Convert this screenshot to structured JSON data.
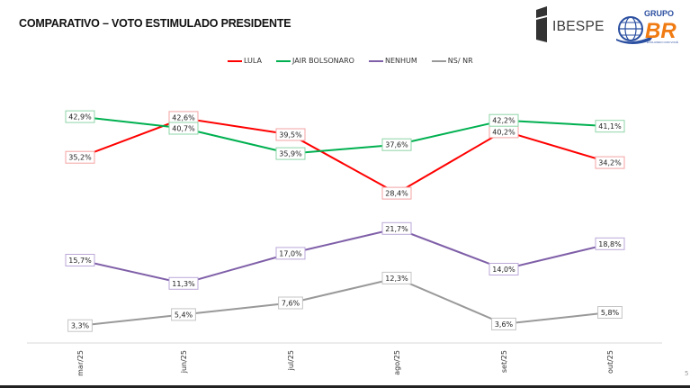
{
  "header": {
    "title": "COMPARATIVO – VOTO ESTIMULADO PRESIDENTE",
    "logos": [
      {
        "name": "IBESPE",
        "text": "IBESPE"
      },
      {
        "name": "Grupo BR",
        "text_top": "GRUPO",
        "text_main": "BR",
        "tagline": "EVOLUINDO COM VOCÊ"
      }
    ]
  },
  "page_number": "5",
  "colors": {
    "lula": "#ff0000",
    "bolsonaro": "#00b050",
    "nenhum": "#7f5fa8",
    "nsnr": "#999999"
  },
  "chart_data": {
    "type": "line",
    "title": "COMPARATIVO – VOTO ESTIMULADO PRESIDENTE",
    "xlabel": "",
    "ylabel": "",
    "ylim": [
      0,
      45
    ],
    "grid": false,
    "legend_position": "top-center",
    "categories": [
      "mar/25",
      "jun/25",
      "jul/25",
      "ago/25",
      "set/25",
      "out/25"
    ],
    "series": [
      {
        "name": "LULA",
        "color": "#ff0000",
        "label_border": "#f4a3a3",
        "values": [
          35.2,
          42.6,
          39.5,
          28.4,
          40.2,
          34.2
        ],
        "labels": [
          "35,2%",
          "42,6%",
          "39,5%",
          "28,4%",
          "40,2%",
          "34,2%"
        ]
      },
      {
        "name": "JAIR BOLSONARO",
        "color": "#00b050",
        "label_border": "#8fd6a8",
        "values": [
          42.9,
          40.7,
          35.9,
          37.6,
          42.2,
          41.1
        ],
        "labels": [
          "42,9%",
          "40,7%",
          "35,9%",
          "37,6%",
          "42,2%",
          "41,1%"
        ]
      },
      {
        "name": "NENHUM",
        "color": "#7f5fa8",
        "label_border": "#bba8d8",
        "values": [
          15.7,
          11.3,
          17.0,
          21.7,
          14.0,
          18.8
        ],
        "labels": [
          "15,7%",
          "11,3%",
          "17,0%",
          "21,7%",
          "14,0%",
          "18,8%"
        ]
      },
      {
        "name": "NS/ NR",
        "color": "#999999",
        "label_border": "#c4c4c4",
        "values": [
          3.3,
          5.4,
          7.6,
          12.3,
          3.6,
          5.8
        ],
        "labels": [
          "3,3%",
          "5,4%",
          "7,6%",
          "12,3%",
          "3,6%",
          "5,8%"
        ]
      }
    ]
  }
}
